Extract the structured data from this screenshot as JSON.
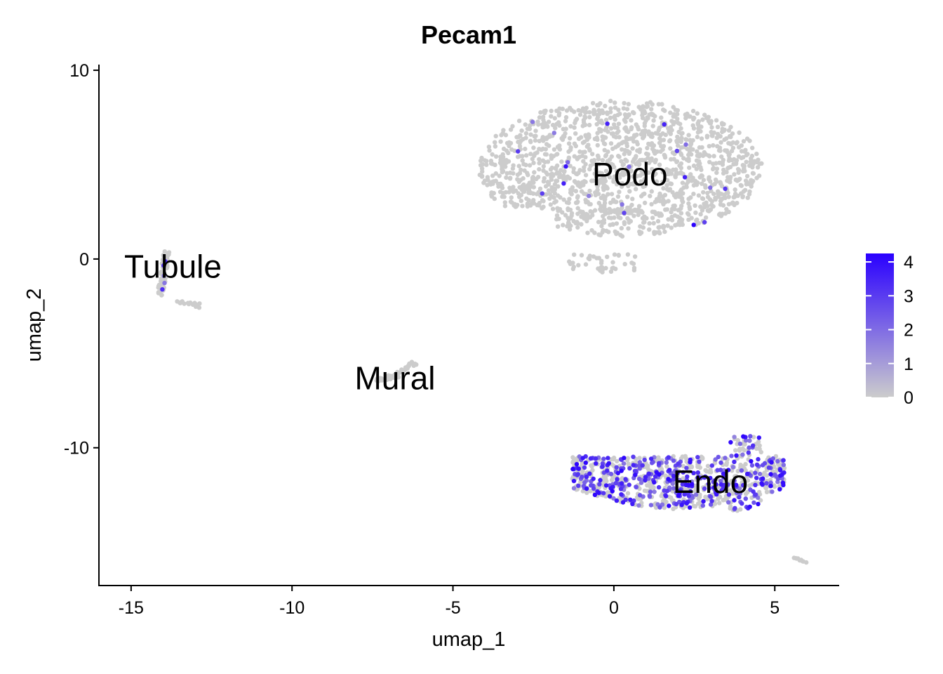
{
  "chart_data": {
    "type": "scatter",
    "title": "Pecam1",
    "xlabel": "umap_1",
    "ylabel": "umap_2",
    "xlim": [
      -16,
      7
    ],
    "ylim": [
      -17.3,
      10.3
    ],
    "x_ticks": [
      -15,
      -10,
      -5,
      0,
      5
    ],
    "x_tick_labels": [
      "-15",
      "-10",
      "-5",
      "0",
      "5"
    ],
    "y_ticks": [
      10,
      0,
      -10
    ],
    "y_tick_labels": [
      "10",
      "0",
      "-10"
    ],
    "grid": false,
    "cluster_labels": [
      {
        "text": "Podo",
        "x": 0.5,
        "y": 4.5
      },
      {
        "text": "Tubule",
        "x": -13.7,
        "y": -0.4
      },
      {
        "text": "Mural",
        "x": -6.8,
        "y": -6.3
      },
      {
        "text": "Endo",
        "x": 3.0,
        "y": -11.8
      }
    ],
    "legend": {
      "placement": "right",
      "title": "",
      "min": 0,
      "max": 4.25,
      "ticks": [
        0,
        1,
        2,
        3,
        4
      ],
      "tick_labels": [
        "0",
        "1",
        "2",
        "3",
        "4"
      ],
      "low_color": "#CCCCCC",
      "high_color": "#2A00FF"
    },
    "clusters": [
      {
        "name": "Podo",
        "shape": "blob",
        "cx": 0.2,
        "cy": 4.8,
        "rx": 4.4,
        "ry": 3.6,
        "n": 1500,
        "expressed_fraction": 0.012,
        "seed": 11
      },
      {
        "name": "Tubule",
        "shape": "streak",
        "points": [
          [
            -13.9,
            0.4
          ],
          [
            -14.0,
            -0.9
          ],
          [
            -14.1,
            -1.9
          ]
        ],
        "extra": [
          [
            -13.6,
            -2.3
          ],
          [
            -13.0,
            -2.4
          ],
          [
            -12.9,
            -2.5
          ]
        ],
        "spread": 0.18,
        "n": 70,
        "expressed_fraction": 0.03,
        "seed": 23
      },
      {
        "name": "Mural",
        "shape": "streak",
        "points": [
          [
            -7.3,
            -6.4
          ],
          [
            -6.8,
            -6.2
          ],
          [
            -6.2,
            -5.5
          ]
        ],
        "extra": [],
        "spread": 0.18,
        "n": 60,
        "expressed_fraction": 0.0,
        "seed": 37
      },
      {
        "name": "Endo",
        "shape": "band",
        "x_range": [
          -1.3,
          5.3
        ],
        "n": 900,
        "expressed_fraction": 0.42,
        "seed": 53
      },
      {
        "name": "Endo-outlier",
        "shape": "streak",
        "points": [
          [
            5.6,
            -15.8
          ],
          [
            6.0,
            -16.1
          ]
        ],
        "extra": [],
        "spread": 0.06,
        "n": 10,
        "expressed_fraction": 0.2,
        "seed": 71
      }
    ]
  }
}
